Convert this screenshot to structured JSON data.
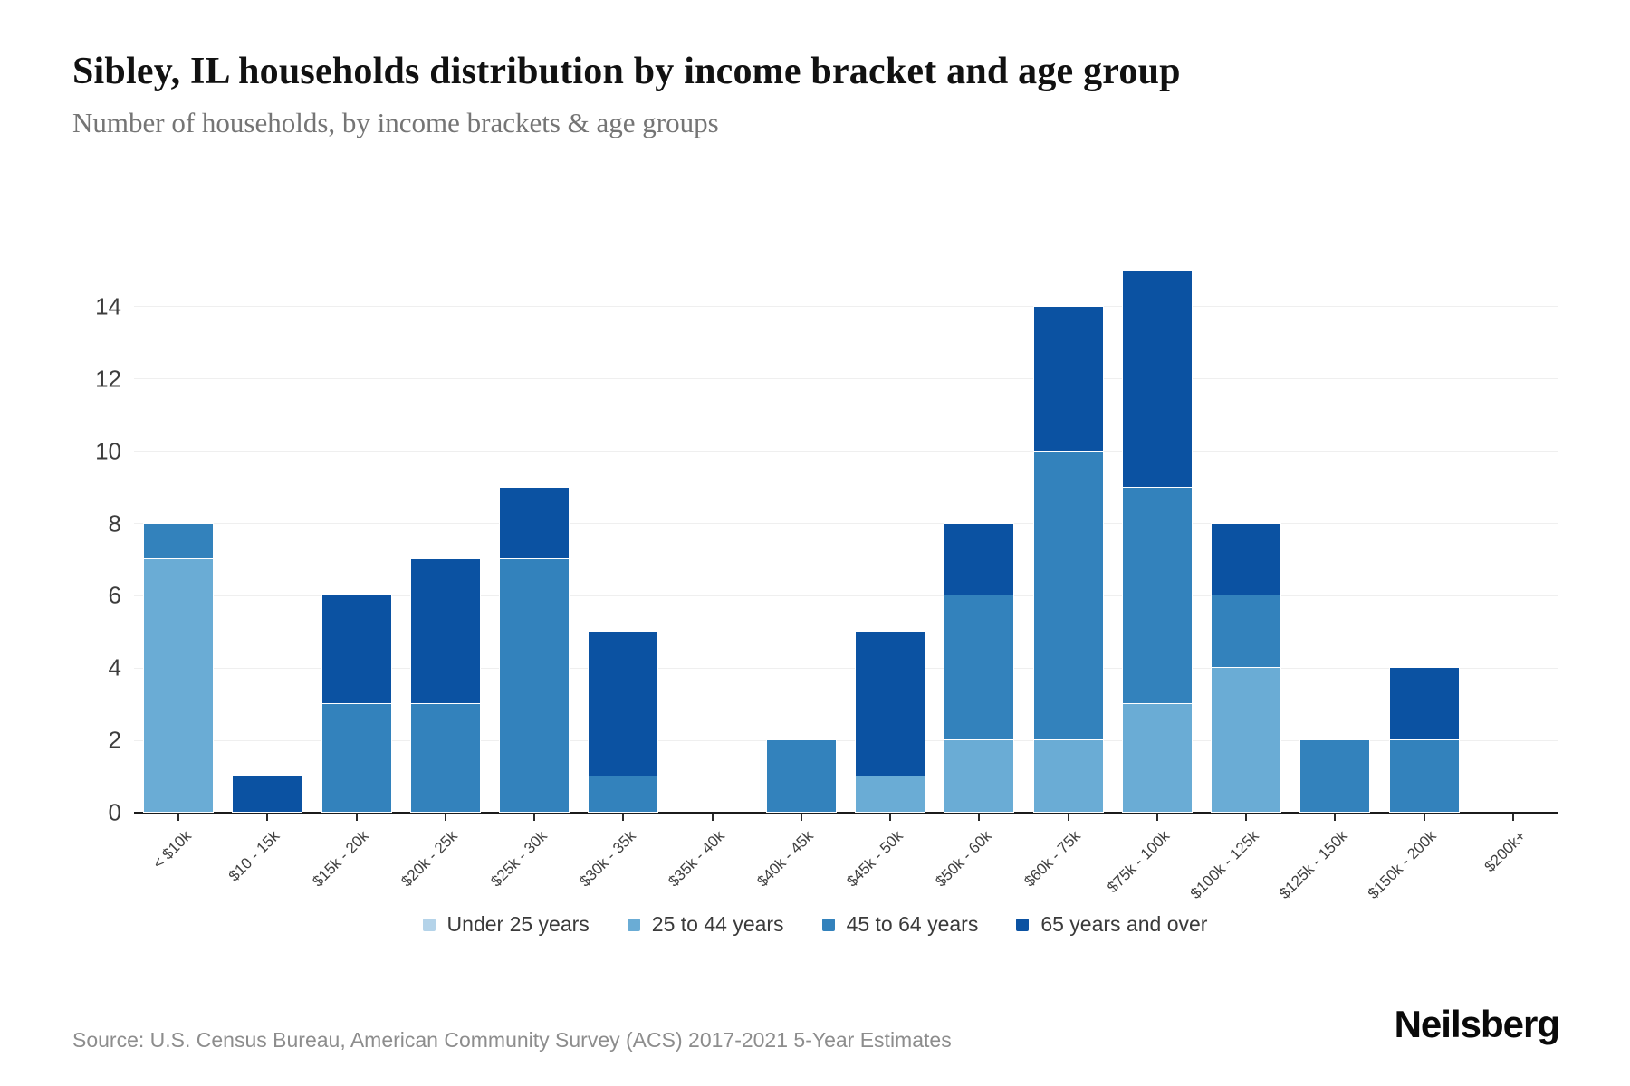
{
  "header": {
    "title": "Sibley, IL households distribution by income bracket and age group",
    "subtitle": "Number of households, by income brackets & age groups"
  },
  "chart_data": {
    "type": "bar",
    "stacked": true,
    "title": "Sibley, IL households distribution by income bracket and age group",
    "subtitle": "Number of households, by income brackets & age groups",
    "categories": [
      "< $10k",
      "$10 - 15k",
      "$15k - 20k",
      "$20k - 25k",
      "$25k - 30k",
      "$30k - 35k",
      "$35k - 40k",
      "$40k - 45k",
      "$45k - 50k",
      "$50k - 60k",
      "$60k - 75k",
      "$75k - 100k",
      "$100k - 125k",
      "$125k - 150k",
      "$150k - 200k",
      "$200k+"
    ],
    "series": [
      {
        "name": "Under 25 years",
        "color": "#b4d3e9",
        "values": [
          0,
          0,
          0,
          0,
          0,
          0,
          0,
          0,
          0,
          0,
          0,
          0,
          0,
          0,
          0,
          0
        ]
      },
      {
        "name": "25 to 44 years",
        "color": "#6aacd5",
        "values": [
          7,
          0,
          0,
          0,
          0,
          0,
          0,
          0,
          1,
          2,
          2,
          3,
          4,
          0,
          0,
          0
        ]
      },
      {
        "name": "45 to 64 years",
        "color": "#3382bc",
        "values": [
          1,
          0,
          3,
          3,
          7,
          1,
          0,
          2,
          0,
          4,
          8,
          6,
          2,
          2,
          2,
          0
        ]
      },
      {
        "name": "65 years and over",
        "color": "#0b52a2",
        "values": [
          0,
          1,
          3,
          4,
          2,
          4,
          0,
          0,
          4,
          2,
          4,
          6,
          2,
          0,
          2,
          0
        ]
      }
    ],
    "totals": [
      8,
      1,
      6,
      7,
      9,
      5,
      0,
      2,
      5,
      8,
      14,
      15,
      8,
      2,
      4,
      0
    ],
    "xlabel": "",
    "ylabel": "",
    "ylim": [
      0,
      15
    ],
    "yticks": [
      0,
      2,
      4,
      6,
      8,
      10,
      12,
      14
    ],
    "grid": true,
    "legend_position": "bottom"
  },
  "footer": {
    "source": "Source: U.S. Census Bureau, American Community Survey (ACS) 2017-2021 5-Year Estimates",
    "brand": "Neilsberg"
  }
}
